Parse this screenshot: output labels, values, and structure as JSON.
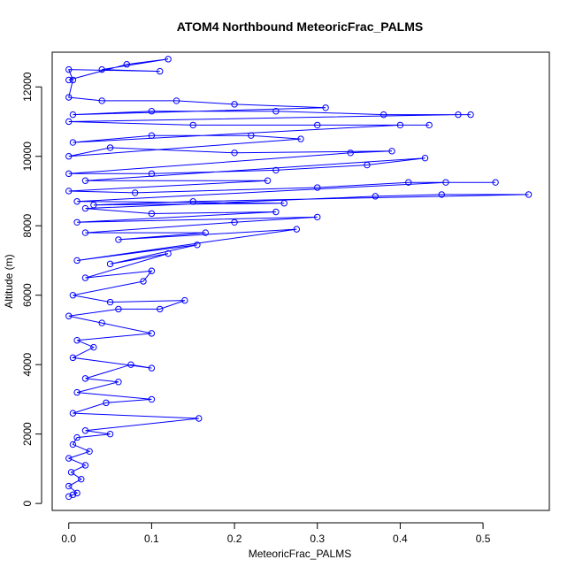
{
  "chart_data": {
    "type": "scatter",
    "title": "ATOM4 Northbound MeteoricFrac_PALMS",
    "xlabel": "MeteoricFrac_PALMS",
    "ylabel": "Altitude (m)",
    "xlim": [
      -0.02,
      0.58
    ],
    "ylim": [
      -200,
      13000
    ],
    "x_ticks": [
      "0.0",
      "0.1",
      "0.2",
      "0.3",
      "0.4",
      "0.5"
    ],
    "y_ticks": [
      "0",
      "2000",
      "4000",
      "6000",
      "8000",
      "10000",
      "12000"
    ],
    "grid": false,
    "legend": "none",
    "marker": "open-circle",
    "connected": true,
    "color": "#0000ff",
    "series": [
      {
        "points": [
          [
            0.0,
            200
          ],
          [
            0.005,
            250
          ],
          [
            0.01,
            300
          ],
          [
            0.0,
            500
          ],
          [
            0.015,
            700
          ],
          [
            0.003,
            900
          ],
          [
            0.02,
            1100
          ],
          [
            0.0,
            1300
          ],
          [
            0.025,
            1500
          ],
          [
            0.005,
            1700
          ],
          [
            0.01,
            1900
          ],
          [
            0.05,
            2000
          ],
          [
            0.02,
            2100
          ],
          [
            0.157,
            2450
          ],
          [
            0.005,
            2600
          ],
          [
            0.045,
            2900
          ],
          [
            0.1,
            3000
          ],
          [
            0.01,
            3200
          ],
          [
            0.06,
            3500
          ],
          [
            0.02,
            3600
          ],
          [
            0.075,
            4000
          ],
          [
            0.1,
            3900
          ],
          [
            0.005,
            4200
          ],
          [
            0.03,
            4500
          ],
          [
            0.01,
            4700
          ],
          [
            0.1,
            4900
          ],
          [
            0.04,
            5200
          ],
          [
            0.0,
            5400
          ],
          [
            0.06,
            5600
          ],
          [
            0.11,
            5600
          ],
          [
            0.14,
            5850
          ],
          [
            0.05,
            5800
          ],
          [
            0.005,
            6000
          ],
          [
            0.09,
            6400
          ],
          [
            0.1,
            6700
          ],
          [
            0.02,
            6500
          ],
          [
            0.12,
            7200
          ],
          [
            0.05,
            6900
          ],
          [
            0.155,
            7450
          ],
          [
            0.01,
            7000
          ],
          [
            0.275,
            7900
          ],
          [
            0.06,
            7600
          ],
          [
            0.165,
            7800
          ],
          [
            0.02,
            7800
          ],
          [
            0.2,
            8100
          ],
          [
            0.3,
            8250
          ],
          [
            0.01,
            8100
          ],
          [
            0.25,
            8400
          ],
          [
            0.1,
            8350
          ],
          [
            0.02,
            8500
          ],
          [
            0.37,
            8850
          ],
          [
            0.45,
            8900
          ],
          [
            0.555,
            8900
          ],
          [
            0.15,
            8700
          ],
          [
            0.03,
            8600
          ],
          [
            0.26,
            8650
          ],
          [
            0.01,
            8700
          ],
          [
            0.455,
            9250
          ],
          [
            0.515,
            9250
          ],
          [
            0.41,
            9250
          ],
          [
            0.3,
            9100
          ],
          [
            0.08,
            8950
          ],
          [
            0.0,
            9000
          ],
          [
            0.24,
            9300
          ],
          [
            0.02,
            9300
          ],
          [
            0.43,
            9950
          ],
          [
            0.36,
            9750
          ],
          [
            0.25,
            9600
          ],
          [
            0.1,
            9500
          ],
          [
            0.0,
            9500
          ],
          [
            0.34,
            10100
          ],
          [
            0.39,
            10150
          ],
          [
            0.2,
            10100
          ],
          [
            0.05,
            10250
          ],
          [
            0.0,
            10000
          ],
          [
            0.28,
            10500
          ],
          [
            0.22,
            10600
          ],
          [
            0.1,
            10600
          ],
          [
            0.005,
            10400
          ],
          [
            0.4,
            10900
          ],
          [
            0.435,
            10900
          ],
          [
            0.3,
            10900
          ],
          [
            0.15,
            10900
          ],
          [
            0.0,
            11000
          ],
          [
            0.47,
            11200
          ],
          [
            0.485,
            11200
          ],
          [
            0.38,
            11200
          ],
          [
            0.25,
            11300
          ],
          [
            0.1,
            11300
          ],
          [
            0.005,
            11200
          ],
          [
            0.31,
            11400
          ],
          [
            0.2,
            11500
          ],
          [
            0.13,
            11600
          ],
          [
            0.04,
            11600
          ],
          [
            0.0,
            11700
          ],
          [
            0.005,
            12200
          ],
          [
            0.0,
            12500
          ],
          [
            0.11,
            12450
          ],
          [
            0.04,
            12500
          ],
          [
            0.12,
            12800
          ],
          [
            0.07,
            12650
          ],
          [
            0.0,
            12200
          ]
        ]
      }
    ]
  }
}
